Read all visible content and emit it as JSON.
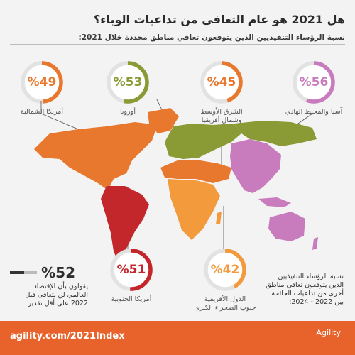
{
  "title": "هل 2021 هو عام التعافي من تداعيات الوباء؟",
  "subtitle": "نسبة الرؤساء التنفيذيين الذين يتوقعون تعافي مناطق محددة خلال 2021:",
  "colors": {
    "na": "#e8782e",
    "eu": "#8a9a35",
    "me": "#e8782e",
    "as": "#c87bbd",
    "sa": "#c3272b",
    "af": "#f29a3c",
    "track": "#e2e2e2",
    "footer": "#e8632b"
  },
  "chart_data": {
    "type": "pie",
    "series": [
      {
        "region": "أمريكا الشمالية",
        "value": 49,
        "label": "%49"
      },
      {
        "region": "أوروبا",
        "value": 53,
        "label": "%53"
      },
      {
        "region": "الشرق الأوسط وشمال أفريقيا",
        "value": 45,
        "label": "%45"
      },
      {
        "region": "آسيا والمحيط الهادي",
        "value": 56,
        "label": "%56"
      },
      {
        "region": "أمريكا الجنوبية",
        "value": 51,
        "label": "%51"
      },
      {
        "region": "الدول الأفريقية جنوب الصحراء الكبرى",
        "value": 42,
        "label": "%42"
      }
    ]
  },
  "regions": {
    "na_line": "أمريكا الشمالية",
    "eu_line": "أوروبا",
    "me_line1": "الشرق الأوسط",
    "me_line2": "وشمال أفريقيا",
    "as_line": "آسيا والمحيط الهادي",
    "sa_line": "أمريكا الجنوبية",
    "af_line1": "الدول الأفريقية",
    "af_line2": "جنوب الصحراء الكبرى"
  },
  "stat": {
    "value": 52,
    "label": "%52",
    "line1": "يقولون بأن الإقتصاد",
    "line2": "العالمي لن يتعافى قبل",
    "line3": "2022 على أقل تقدير"
  },
  "side_note": {
    "line1": "نسبة الرؤساء التنفيذيين",
    "line2": "الذين يتوقعون تعافي مناطق",
    "line3": "أخرى من تداعيات الجائحة",
    "line4": "بين 2022 - 2024:"
  },
  "footer": {
    "url": "agility.com/2021Index",
    "brand": "Agility"
  }
}
